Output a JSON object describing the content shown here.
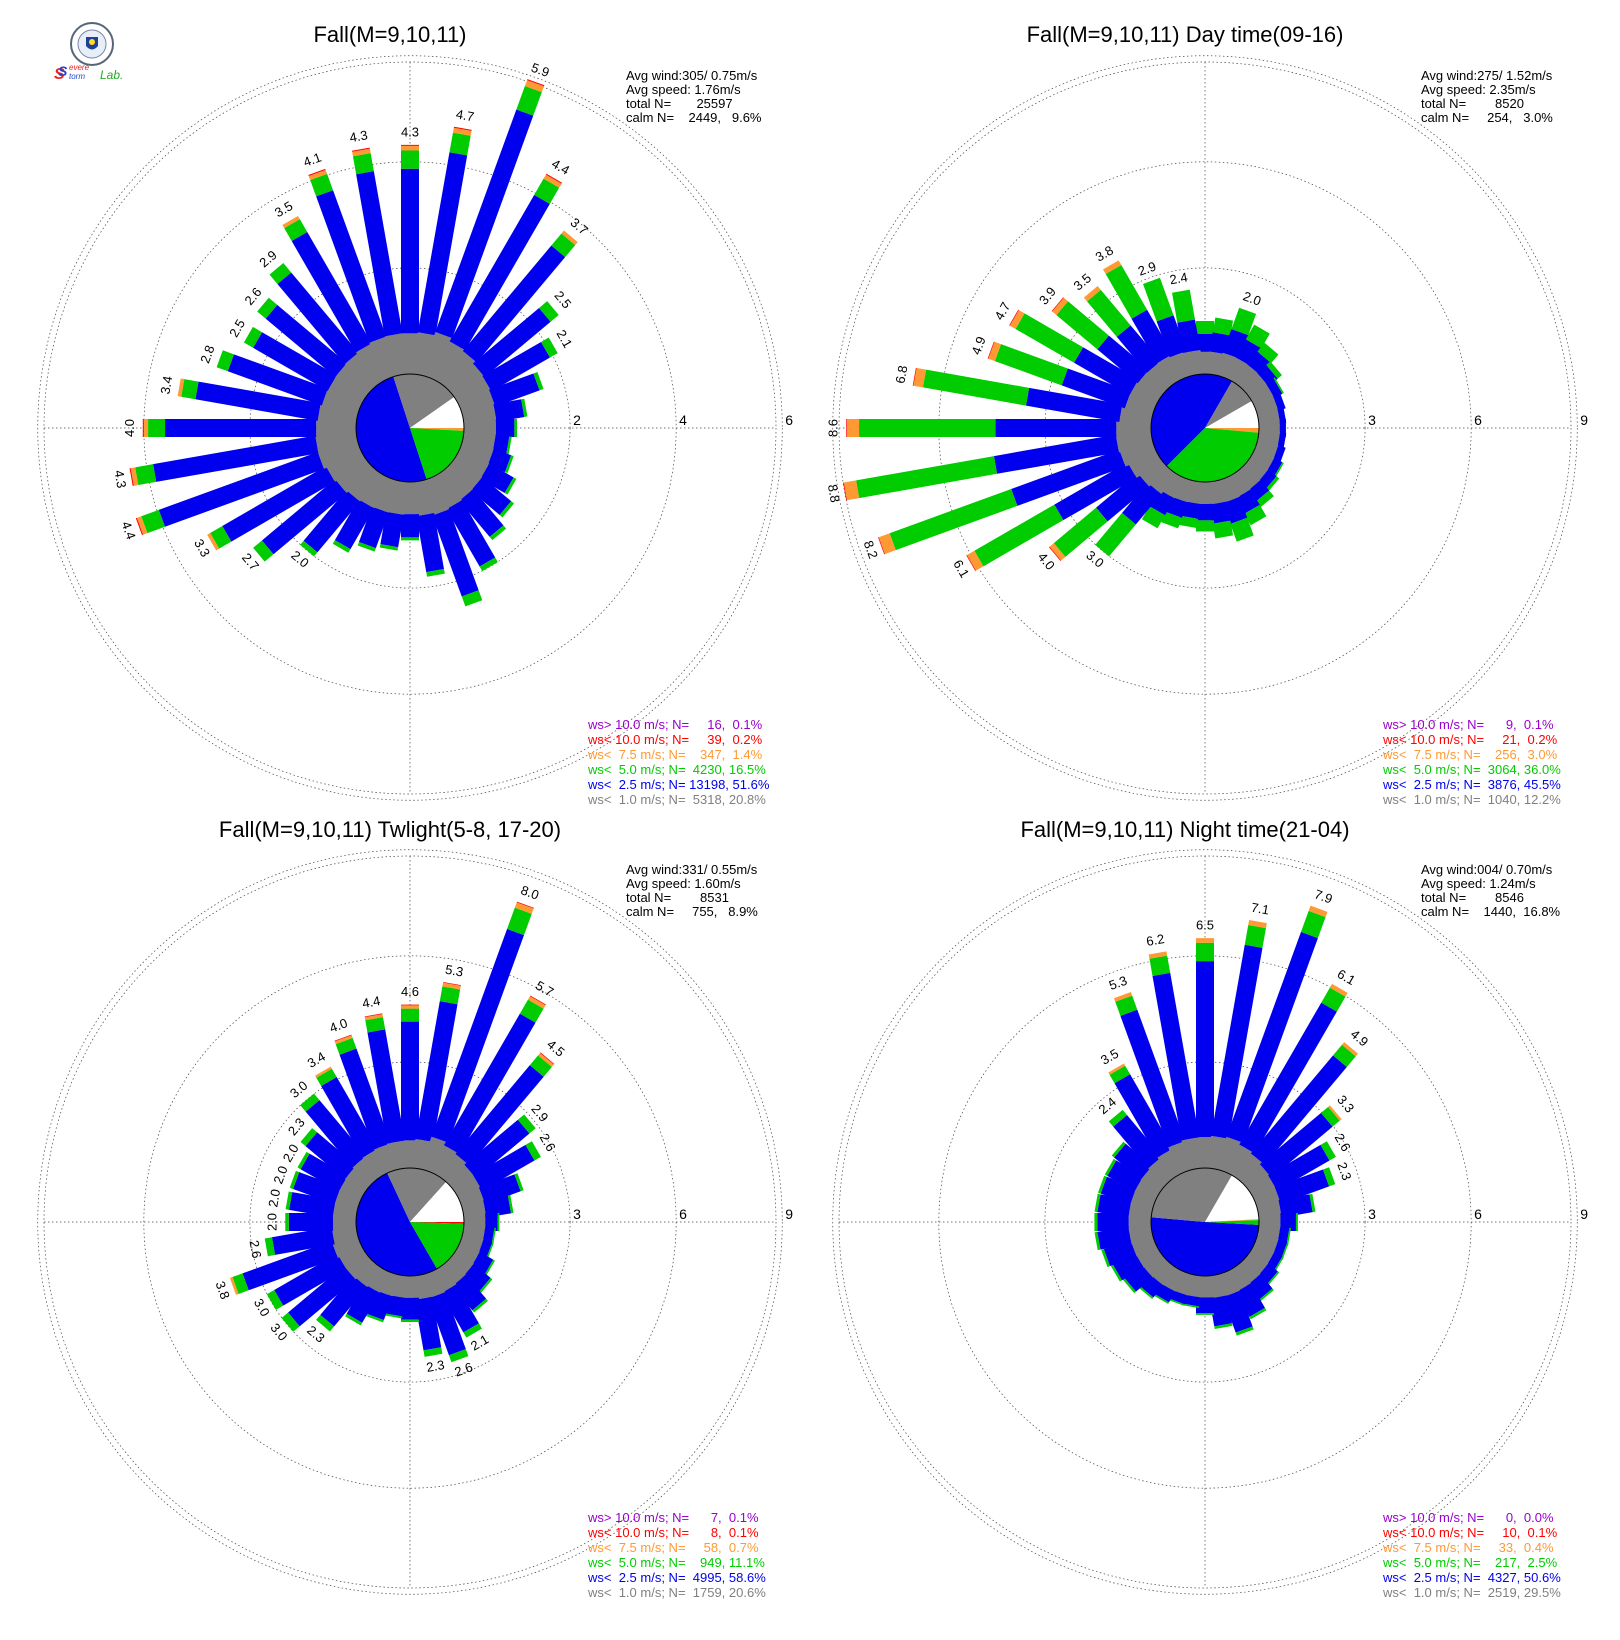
{
  "logo": {
    "name": "Severe Storm Lab.",
    "text_s1": "S",
    "text_s2": "S",
    "text_evere": "evere",
    "text_torm": "torm",
    "text_lab": "Lab."
  },
  "colors": {
    "gt10": "#9900cc",
    "lt10": "#ff0000",
    "lt75": "#ff9933",
    "lt5": "#00cc00",
    "lt25": "#0000ee",
    "lt1": "#808080"
  },
  "chart_data": [
    {
      "type": "wind_rose",
      "title": "Fall(M=9,10,11)",
      "info": [
        "Avg wind:305/ 0.75m/s",
        "Avg speed: 1.76m/s",
        "total N=       25597",
        "calm N=    2449,   9.6%"
      ],
      "rmax": 6,
      "ring_labels": [
        "2",
        "4",
        "6"
      ],
      "center_pie": [
        {
          "class": "lt25",
          "from": 162,
          "to": 342
        },
        {
          "class": "lt1",
          "from": 342,
          "to": 55
        },
        {
          "class": "calm",
          "from": 55,
          "to": 90
        },
        {
          "class": "lt75",
          "from": 90,
          "to": 93
        },
        {
          "class": "lt5",
          "from": 93,
          "to": 162
        }
      ],
      "directions": [
        {
          "deg": 0,
          "total": 4.3,
          "label": "4.3"
        },
        {
          "deg": 10,
          "total": 4.7,
          "label": "4.7"
        },
        {
          "deg": 20,
          "total": 5.9,
          "label": "5.9"
        },
        {
          "deg": 30,
          "total": 4.4,
          "label": "4.4"
        },
        {
          "deg": 40,
          "total": 3.7,
          "label": "3.7"
        },
        {
          "deg": 50,
          "total": 2.5,
          "label": "2.5"
        },
        {
          "deg": 60,
          "total": 2.1,
          "label": "2.1"
        },
        {
          "deg": 70,
          "total": 1.6
        },
        {
          "deg": 80,
          "total": 1.2
        },
        {
          "deg": 90,
          "total": 1.0
        },
        {
          "deg": 100,
          "total": 0.9
        },
        {
          "deg": 110,
          "total": 1.0
        },
        {
          "deg": 120,
          "total": 1.2
        },
        {
          "deg": 130,
          "total": 1.4
        },
        {
          "deg": 140,
          "total": 1.6
        },
        {
          "deg": 150,
          "total": 2.0
        },
        {
          "deg": 160,
          "total": 2.5
        },
        {
          "deg": 170,
          "total": 1.8
        },
        {
          "deg": 180,
          "total": 1.1
        },
        {
          "deg": 190,
          "total": 1.3
        },
        {
          "deg": 200,
          "total": 1.4
        },
        {
          "deg": 210,
          "total": 1.6
        },
        {
          "deg": 220,
          "total": 2.0,
          "label": "2.0"
        },
        {
          "deg": 230,
          "total": 2.7,
          "label": "2.7"
        },
        {
          "deg": 240,
          "total": 3.3,
          "label": "3.3"
        },
        {
          "deg": 250,
          "total": 4.4,
          "label": "4.4"
        },
        {
          "deg": 260,
          "total": 4.3,
          "label": "4.3"
        },
        {
          "deg": 270,
          "total": 4.0,
          "label": "4.0"
        },
        {
          "deg": 280,
          "total": 3.4,
          "label": "3.4"
        },
        {
          "deg": 290,
          "total": 2.8,
          "label": "2.8"
        },
        {
          "deg": 300,
          "total": 2.5,
          "label": "2.5"
        },
        {
          "deg": 310,
          "total": 2.6,
          "label": "2.6"
        },
        {
          "deg": 320,
          "total": 2.9,
          "label": "2.9"
        },
        {
          "deg": 330,
          "total": 3.5,
          "label": "3.5"
        },
        {
          "deg": 340,
          "total": 4.1,
          "label": "4.1"
        },
        {
          "deg": 350,
          "total": 4.3,
          "label": "4.3"
        }
      ],
      "legend": [
        {
          "class": "gt10",
          "text": "ws> 10.0 m/s; N=     16,  0.1%"
        },
        {
          "class": "lt10",
          "text": "ws< 10.0 m/s; N=     39,  0.2%"
        },
        {
          "class": "lt75",
          "text": "ws<  7.5 m/s; N=    347,  1.4%"
        },
        {
          "class": "lt5",
          "text": "ws<  5.0 m/s; N=  4230, 16.5%"
        },
        {
          "class": "lt25",
          "text": "ws<  2.5 m/s; N= 13198, 51.6%"
        },
        {
          "class": "lt1",
          "text": "ws<  1.0 m/s; N=  5318, 20.8%"
        }
      ]
    },
    {
      "type": "wind_rose",
      "title": "Fall(M=9,10,11) Day time(09-16)",
      "info": [
        "Avg wind:275/ 1.52m/s",
        "Avg speed: 2.35m/s",
        "total N=        8520",
        "calm N=     254,   3.0%"
      ],
      "rmax": 9,
      "ring_labels": [
        "3",
        "6",
        "9"
      ],
      "center_pie": [
        {
          "class": "lt25",
          "from": 225,
          "to": 390
        },
        {
          "class": "lt1",
          "from": 390,
          "to": 60
        },
        {
          "class": "calm",
          "from": 60,
          "to": 90
        },
        {
          "class": "lt75",
          "from": 90,
          "to": 95
        },
        {
          "class": "lt5",
          "from": 95,
          "to": 225
        }
      ],
      "directions": [
        {
          "deg": 0,
          "total": 1.5
        },
        {
          "deg": 10,
          "total": 1.6
        },
        {
          "deg": 20,
          "total": 2.0,
          "label": "2.0"
        },
        {
          "deg": 30,
          "total": 1.7
        },
        {
          "deg": 40,
          "total": 1.4
        },
        {
          "deg": 50,
          "total": 1.1
        },
        {
          "deg": 60,
          "total": 0.9
        },
        {
          "deg": 70,
          "total": 0.8
        },
        {
          "deg": 80,
          "total": 0.7
        },
        {
          "deg": 90,
          "total": 0.7
        },
        {
          "deg": 100,
          "total": 0.7
        },
        {
          "deg": 110,
          "total": 0.8
        },
        {
          "deg": 120,
          "total": 0.9
        },
        {
          "deg": 130,
          "total": 1.0
        },
        {
          "deg": 140,
          "total": 1.2
        },
        {
          "deg": 150,
          "total": 1.5
        },
        {
          "deg": 160,
          "total": 1.8
        },
        {
          "deg": 170,
          "total": 1.6
        },
        {
          "deg": 180,
          "total": 1.4
        },
        {
          "deg": 190,
          "total": 1.3
        },
        {
          "deg": 200,
          "total": 1.4
        },
        {
          "deg": 210,
          "total": 1.6
        },
        {
          "deg": 220,
          "total": 3.0,
          "label": "3.0"
        },
        {
          "deg": 230,
          "total": 4.0,
          "label": "4.0"
        },
        {
          "deg": 240,
          "total": 6.1,
          "label": "6.1"
        },
        {
          "deg": 250,
          "total": 8.2,
          "label": "8.2"
        },
        {
          "deg": 260,
          "total": 8.8,
          "label": "8.8"
        },
        {
          "deg": 270,
          "total": 8.6,
          "label": "8.6"
        },
        {
          "deg": 280,
          "total": 6.8,
          "label": "6.8"
        },
        {
          "deg": 290,
          "total": 4.9,
          "label": "4.9"
        },
        {
          "deg": 300,
          "total": 4.7,
          "label": "4.7"
        },
        {
          "deg": 310,
          "total": 3.9,
          "label": "3.9"
        },
        {
          "deg": 320,
          "total": 3.5,
          "label": "3.5"
        },
        {
          "deg": 330,
          "total": 3.8,
          "label": "3.8"
        },
        {
          "deg": 340,
          "total": 2.9,
          "label": "2.9"
        },
        {
          "deg": 350,
          "total": 2.4,
          "label": "2.4"
        }
      ],
      "legend": [
        {
          "class": "gt10",
          "text": "ws> 10.0 m/s; N=      9,  0.1%"
        },
        {
          "class": "lt10",
          "text": "ws< 10.0 m/s; N=     21,  0.2%"
        },
        {
          "class": "lt75",
          "text": "ws<  7.5 m/s; N=    256,  3.0%"
        },
        {
          "class": "lt5",
          "text": "ws<  5.0 m/s; N=  3064, 36.0%"
        },
        {
          "class": "lt25",
          "text": "ws<  2.5 m/s; N=  3876, 45.5%"
        },
        {
          "class": "lt1",
          "text": "ws<  1.0 m/s; N=  1040, 12.2%"
        }
      ]
    },
    {
      "type": "wind_rose",
      "title": "Fall(M=9,10,11) Twlight(5-8, 17-20)",
      "info": [
        "Avg wind:331/ 0.55m/s",
        "Avg speed: 1.60m/s",
        "total N=        8531",
        "calm N=     755,   8.9%"
      ],
      "rmax": 9,
      "ring_labels": [
        "3",
        "6",
        "9"
      ],
      "center_pie": [
        {
          "class": "lt25",
          "from": 150,
          "to": 335
        },
        {
          "class": "lt1",
          "from": 335,
          "to": 42
        },
        {
          "class": "calm",
          "from": 42,
          "to": 90
        },
        {
          "class": "lt10",
          "from": 90,
          "to": 92
        },
        {
          "class": "lt5",
          "from": 92,
          "to": 150
        }
      ],
      "directions": [
        {
          "deg": 0,
          "total": 4.6,
          "label": "4.6"
        },
        {
          "deg": 10,
          "total": 5.3,
          "label": "5.3"
        },
        {
          "deg": 20,
          "total": 8.0,
          "label": "8.0"
        },
        {
          "deg": 30,
          "total": 5.7,
          "label": "5.7"
        },
        {
          "deg": 40,
          "total": 4.5,
          "label": "4.5"
        },
        {
          "deg": 50,
          "total": 2.9,
          "label": "2.9"
        },
        {
          "deg": 60,
          "total": 2.6,
          "label": "2.6"
        },
        {
          "deg": 70,
          "total": 1.8
        },
        {
          "deg": 80,
          "total": 1.4
        },
        {
          "deg": 90,
          "total": 1.0
        },
        {
          "deg": 100,
          "total": 0.9
        },
        {
          "deg": 110,
          "total": 0.9
        },
        {
          "deg": 120,
          "total": 1.1
        },
        {
          "deg": 130,
          "total": 1.3
        },
        {
          "deg": 140,
          "total": 1.6
        },
        {
          "deg": 150,
          "total": 2.1,
          "label": "2.1"
        },
        {
          "deg": 160,
          "total": 2.6,
          "label": "2.6"
        },
        {
          "deg": 170,
          "total": 2.3,
          "label": "2.3"
        },
        {
          "deg": 180,
          "total": 1.3
        },
        {
          "deg": 190,
          "total": 1.2
        },
        {
          "deg": 200,
          "total": 1.4
        },
        {
          "deg": 210,
          "total": 1.7
        },
        {
          "deg": 220,
          "total": 2.3,
          "label": "2.3"
        },
        {
          "deg": 230,
          "total": 3.0,
          "label": "3.0"
        },
        {
          "deg": 240,
          "total": 3.0,
          "label": "3.0"
        },
        {
          "deg": 250,
          "total": 3.8,
          "label": "3.8"
        },
        {
          "deg": 260,
          "total": 2.6,
          "label": "2.6"
        },
        {
          "deg": 270,
          "total": 2.0,
          "label": "2.0"
        },
        {
          "deg": 280,
          "total": 2.0,
          "label": "2.0"
        },
        {
          "deg": 290,
          "total": 2.0,
          "label": "2.0"
        },
        {
          "deg": 300,
          "total": 2.0,
          "label": "2.0"
        },
        {
          "deg": 310,
          "total": 2.3,
          "label": "2.3"
        },
        {
          "deg": 320,
          "total": 3.0,
          "label": "3.0"
        },
        {
          "deg": 330,
          "total": 3.4,
          "label": "3.4"
        },
        {
          "deg": 340,
          "total": 4.0,
          "label": "4.0"
        },
        {
          "deg": 350,
          "total": 4.4,
          "label": "4.4"
        }
      ],
      "legend": [
        {
          "class": "gt10",
          "text": "ws> 10.0 m/s; N=      7,  0.1%"
        },
        {
          "class": "lt10",
          "text": "ws< 10.0 m/s; N=      8,  0.1%"
        },
        {
          "class": "lt75",
          "text": "ws<  7.5 m/s; N=     58,  0.7%"
        },
        {
          "class": "lt5",
          "text": "ws<  5.0 m/s; N=    949, 11.1%"
        },
        {
          "class": "lt25",
          "text": "ws<  2.5 m/s; N=  4995, 58.6%"
        },
        {
          "class": "lt1",
          "text": "ws<  1.0 m/s; N=  1759, 20.6%"
        }
      ]
    },
    {
      "type": "wind_rose",
      "title": "Fall(M=9,10,11) Night time(21-04)",
      "info": [
        "Avg wind:004/ 0.70m/s",
        "Avg speed: 1.24m/s",
        "total N=        8546",
        "calm N=    1440,  16.8%"
      ],
      "rmax": 9,
      "ring_labels": [
        "3",
        "6",
        "9"
      ],
      "center_pie": [
        {
          "class": "lt25",
          "from": 93,
          "to": 275
        },
        {
          "class": "lt1",
          "from": 275,
          "to": 390
        },
        {
          "class": "calm",
          "from": 390,
          "to": 87
        },
        {
          "class": "lt75",
          "from": 87,
          "to": 88
        },
        {
          "class": "lt5",
          "from": 88,
          "to": 93
        }
      ],
      "directions": [
        {
          "deg": 0,
          "total": 6.5,
          "label": "6.5"
        },
        {
          "deg": 10,
          "total": 7.1,
          "label": "7.1"
        },
        {
          "deg": 20,
          "total": 7.9,
          "label": "7.9"
        },
        {
          "deg": 30,
          "total": 6.1,
          "label": "6.1"
        },
        {
          "deg": 40,
          "total": 4.9,
          "label": "4.9"
        },
        {
          "deg": 50,
          "total": 3.3,
          "label": "3.3"
        },
        {
          "deg": 60,
          "total": 2.6,
          "label": "2.6"
        },
        {
          "deg": 70,
          "total": 2.3,
          "label": "2.3"
        },
        {
          "deg": 80,
          "total": 1.6
        },
        {
          "deg": 90,
          "total": 1.1
        },
        {
          "deg": 100,
          "total": 0.9
        },
        {
          "deg": 110,
          "total": 0.9
        },
        {
          "deg": 120,
          "total": 0.9
        },
        {
          "deg": 130,
          "total": 1.0
        },
        {
          "deg": 140,
          "total": 1.2
        },
        {
          "deg": 150,
          "total": 1.5
        },
        {
          "deg": 160,
          "total": 1.8
        },
        {
          "deg": 170,
          "total": 1.5
        },
        {
          "deg": 180,
          "total": 1.1
        },
        {
          "deg": 190,
          "total": 0.9
        },
        {
          "deg": 200,
          "total": 0.9
        },
        {
          "deg": 210,
          "total": 1.0
        },
        {
          "deg": 220,
          "total": 1.1
        },
        {
          "deg": 230,
          "total": 1.3
        },
        {
          "deg": 240,
          "total": 1.4
        },
        {
          "deg": 250,
          "total": 1.5
        },
        {
          "deg": 260,
          "total": 1.6
        },
        {
          "deg": 270,
          "total": 1.6
        },
        {
          "deg": 280,
          "total": 1.6
        },
        {
          "deg": 290,
          "total": 1.6
        },
        {
          "deg": 300,
          "total": 1.6
        },
        {
          "deg": 310,
          "total": 1.7
        },
        {
          "deg": 320,
          "total": 2.4,
          "label": "2.4"
        },
        {
          "deg": 330,
          "total": 3.5,
          "label": "3.5"
        },
        {
          "deg": 340,
          "total": 5.3,
          "label": "5.3"
        },
        {
          "deg": 350,
          "total": 6.2,
          "label": "6.2"
        }
      ],
      "legend": [
        {
          "class": "gt10",
          "text": "ws> 10.0 m/s; N=      0,  0.0%"
        },
        {
          "class": "lt10",
          "text": "ws< 10.0 m/s; N=     10,  0.1%"
        },
        {
          "class": "lt75",
          "text": "ws<  7.5 m/s; N=     33,  0.4%"
        },
        {
          "class": "lt5",
          "text": "ws<  5.0 m/s; N=    217,  2.5%"
        },
        {
          "class": "lt25",
          "text": "ws<  2.5 m/s; N=  4327, 50.6%"
        },
        {
          "class": "lt1",
          "text": "ws<  1.0 m/s; N=  2519, 29.5%"
        }
      ]
    }
  ]
}
